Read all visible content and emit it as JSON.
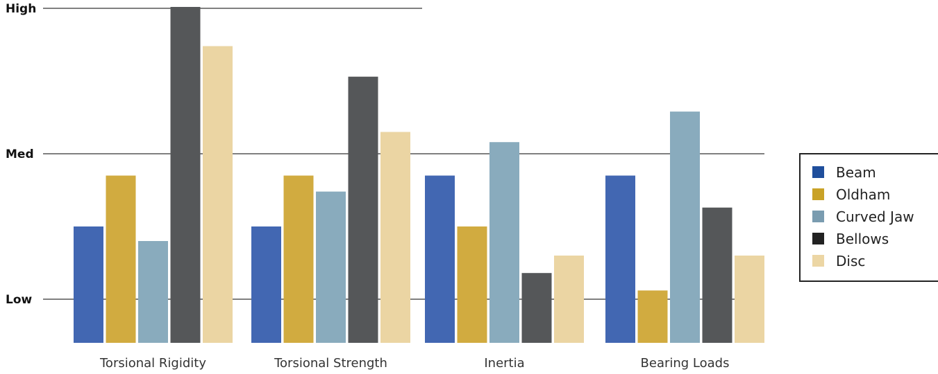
{
  "chart_data": {
    "type": "bar",
    "title": "",
    "xlabel": "",
    "ylabel": "",
    "categories": [
      "Torsional Rigidity",
      "Torsional Strength",
      "Inertia",
      "Bearing Loads"
    ],
    "y_ticks": [
      {
        "label": "Low",
        "value": 0
      },
      {
        "label": "Med",
        "value": 1
      },
      {
        "label": "High",
        "value": 2
      }
    ],
    "ylim": [
      -0.3,
      2.1
    ],
    "grid": true,
    "legend_position": "right",
    "series": [
      {
        "name": "Beam",
        "legend_color": "#1f4e9c",
        "color": "#4267b2",
        "values": [
          0.5,
          0.5,
          0.85,
          0.85
        ]
      },
      {
        "name": "Oldham",
        "legend_color": "#c9a227",
        "color": "#d1ab40",
        "values": [
          0.85,
          0.85,
          0.5,
          0.06
        ]
      },
      {
        "name": "Curved Jaw",
        "legend_color": "#7a9cb0",
        "color": "#89abbd",
        "values": [
          0.4,
          0.74,
          1.08,
          1.29
        ]
      },
      {
        "name": "Bellows",
        "legend_color": "#222222",
        "color": "#555759",
        "values": [
          2.1,
          1.53,
          0.18,
          0.63
        ]
      },
      {
        "name": "Disc",
        "legend_color": "#ecd6a4",
        "color": "#ebd5a3",
        "values": [
          1.74,
          1.15,
          0.3,
          0.3
        ]
      }
    ]
  }
}
